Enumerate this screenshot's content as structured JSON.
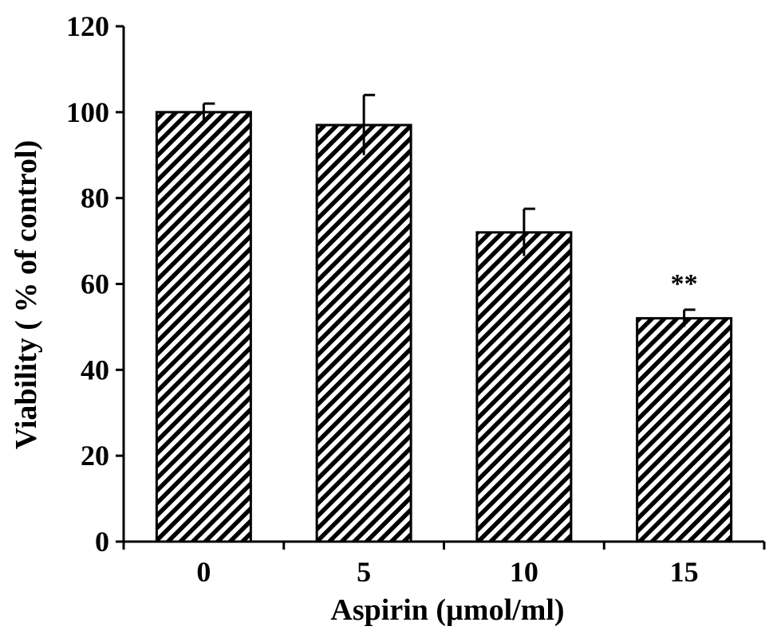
{
  "chart_data": {
    "type": "bar",
    "title": "",
    "xlabel": "Aspirin (µmol/ml)",
    "ylabel": "Viability ( % of control)",
    "categories": [
      "0",
      "5",
      "10",
      "15"
    ],
    "values": [
      100,
      97,
      72,
      52
    ],
    "error": [
      2,
      7,
      5.5,
      2
    ],
    "annotations": [
      "",
      "",
      "",
      "**"
    ],
    "ylim": [
      0,
      120
    ],
    "yticks": [
      0,
      20,
      40,
      60,
      80,
      100,
      120
    ],
    "grid": false,
    "legend": "none",
    "bar_fill": "diagonal-hatch",
    "colors": {
      "bar_stroke": "#000000",
      "hatch": "#000000",
      "background": "#ffffff"
    }
  }
}
